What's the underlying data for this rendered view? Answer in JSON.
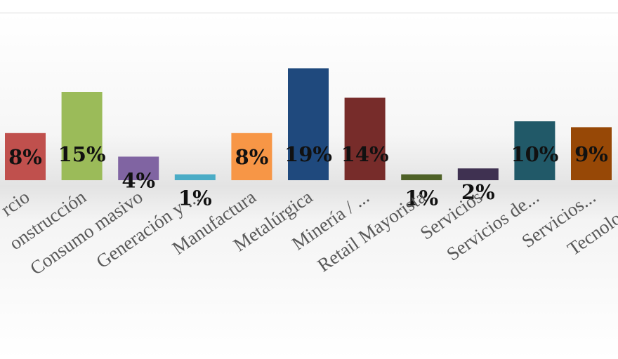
{
  "chart_data": {
    "type": "bar",
    "categories": [
      "rcio",
      "onstrucción",
      "Consumo masivo",
      "Generación y ...",
      "Manufactura",
      "Metalúrgica",
      "Minería / ...",
      "Retail Mayorista",
      "Servicios",
      "Servicios de...",
      "Servicios...",
      "Tecnología..."
    ],
    "values": [
      8,
      15,
      4,
      1,
      8,
      19,
      14,
      1,
      2,
      10,
      9,
      null
    ],
    "value_labels": [
      "8%",
      "15%",
      "4%",
      "1%",
      "8%",
      "19%",
      "14%",
      "1%",
      "2%",
      "10%",
      "9%",
      null
    ],
    "colors": [
      "#c0504d",
      "#9bbb59",
      "#8064a2",
      "#4bacc6",
      "#f79646",
      "#1f497d",
      "#772c2a",
      "#4f6228",
      "#3f3151",
      "#215968",
      "#974806",
      "#4f81bd"
    ],
    "ylim": [
      0,
      20
    ]
  }
}
